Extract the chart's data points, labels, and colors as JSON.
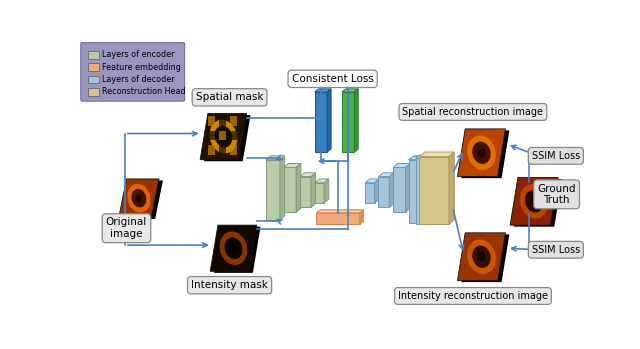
{
  "legend_items": [
    {
      "label": "Layers of encoder",
      "color": "#b8ccaa"
    },
    {
      "label": "Feature embedding",
      "color": "#f4a97a"
    },
    {
      "label": "Layers of decoder",
      "color": "#a8c4d8"
    },
    {
      "label": "Reconstruction Head",
      "color": "#d4c48a"
    }
  ],
  "legend_bg": "#9b96c0",
  "arrow_color": "#4a80c0",
  "encoder_color": "#b8ccaa",
  "encoder_edge": "#7a9a7a",
  "decoder_color": "#a8c4d8",
  "decoder_edge": "#6699bb",
  "embed_color": "#f4a97a",
  "embed_edge": "#cc8855",
  "rhead_color": "#d4c48a",
  "rhead_edge": "#aa9966",
  "blue_blk": "#3a7fc1",
  "blue_blk_edge": "#1a4f91",
  "green_blk": "#4caf50",
  "green_blk_edge": "#2a7a2a",
  "box_face": "#e8e8e8",
  "box_edge": "#888888",
  "bg": "#ffffff",
  "labels": {
    "original": "Original\nimage",
    "spatial_mask": "Spatial mask",
    "intensity_mask": "Intensity mask",
    "consist_loss": "Consistent Loss",
    "spatial_recon": "Spatial reconstruction image",
    "intensity_recon": "Intensity reconstruction image",
    "ssim": "SSIM Loss",
    "ground_truth": "Ground\nTruth"
  }
}
